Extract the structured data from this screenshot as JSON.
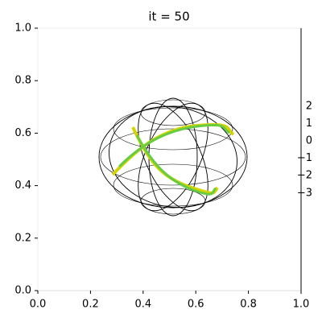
{
  "chart_data": {
    "type": "line",
    "title": "it = 50",
    "xlim": [
      0,
      1
    ],
    "ylim": [
      0,
      1
    ],
    "xticks": [
      {
        "value": 0,
        "label": "0.0"
      },
      {
        "value": 0.2,
        "label": "0.2"
      },
      {
        "value": 0.4,
        "label": "0.4"
      },
      {
        "value": 0.6,
        "label": "0.6"
      },
      {
        "value": 0.8,
        "label": "0.8"
      },
      {
        "value": 1,
        "label": "1.0"
      }
    ],
    "yticks": [
      {
        "value": 0,
        "label": "0.0"
      },
      {
        "value": 0.2,
        "label": "0.2"
      },
      {
        "value": 0.4,
        "label": "0.4"
      },
      {
        "value": 0.6,
        "label": "0.6"
      },
      {
        "value": 0.8,
        "label": "0.8"
      },
      {
        "value": 1,
        "label": "1.0"
      }
    ],
    "zticks": [
      2,
      1,
      0,
      {
        "value": -1,
        "label": "−1"
      },
      {
        "value": -2,
        "label": "−2"
      },
      {
        "value": -3,
        "label": "−3"
      }
    ]
  }
}
